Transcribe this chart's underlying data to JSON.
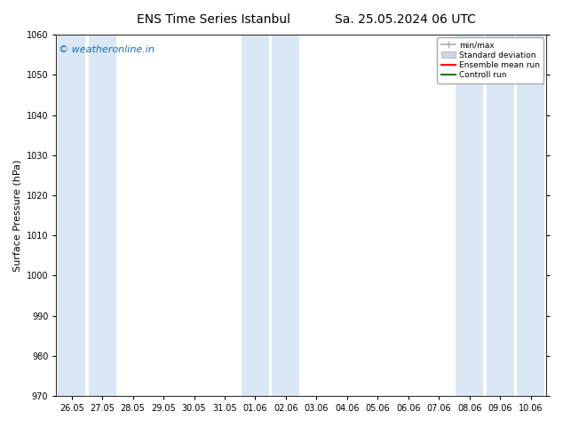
{
  "title1": "ENS Time Series Istanbul",
  "title2": "Sa. 25.05.2024 06 UTC",
  "ylabel": "Surface Pressure (hPa)",
  "ylim": [
    970,
    1060
  ],
  "yticks": [
    970,
    980,
    990,
    1000,
    1010,
    1020,
    1030,
    1040,
    1050,
    1060
  ],
  "xtick_labels": [
    "26.05",
    "27.05",
    "28.05",
    "29.05",
    "30.05",
    "31.05",
    "01.06",
    "02.06",
    "03.06",
    "04.06",
    "05.06",
    "06.06",
    "07.06",
    "08.06",
    "09.06",
    "10.06"
  ],
  "num_ticks": 16,
  "shaded_indices": [
    0,
    1,
    6,
    7,
    13,
    14,
    15
  ],
  "shaded_col_color": "#dae8f5",
  "bg_color": "#ffffff",
  "watermark": "© weatheronline.in",
  "watermark_color": "#1a6ab5",
  "legend_entries": [
    "min/max",
    "Standard deviation",
    "Ensemble mean run",
    "Controll run"
  ],
  "legend_line_color": "#aaaaaa",
  "legend_std_color": "#c8d8e8",
  "legend_ens_color": "#ff0000",
  "legend_ctrl_color": "#008000",
  "title_fontsize": 10,
  "axis_fontsize": 8,
  "tick_fontsize": 7,
  "watermark_fontsize": 8
}
